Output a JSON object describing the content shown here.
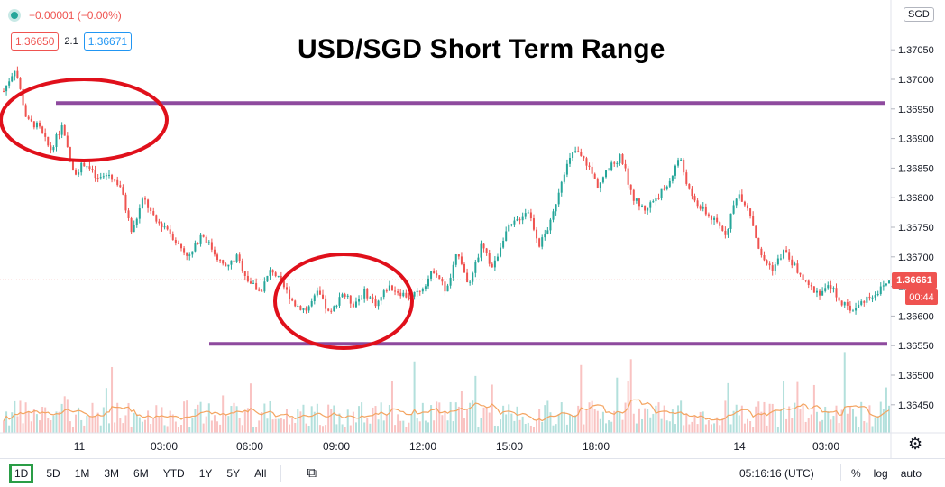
{
  "legend": {
    "change": "−0.00001 (−0.00%)",
    "sell": "1.36650",
    "spread": "2.1",
    "buy": "1.36671"
  },
  "title": "USD/SGD Short Term Range",
  "symbol_badge": "SGD",
  "last_price_label": "1.36661",
  "countdown": "00:44",
  "toolbar": {
    "ranges": [
      "1D",
      "5D",
      "1M",
      "3M",
      "6M",
      "YTD",
      "1Y",
      "5Y",
      "All"
    ],
    "active_range": "1D",
    "clock": "05:16:16 (UTC)",
    "options": [
      "%",
      "log",
      "auto"
    ]
  },
  "colors": {
    "up": "#26a69a",
    "down": "#ef5350",
    "annotation_line": "#8e4a9e",
    "annotation_circle": "#e0101b",
    "ma_line": "#f4a460"
  },
  "chart_data": {
    "type": "line",
    "y_axis": {
      "min": 1.3641,
      "max": 1.3712,
      "ticks": [
        "1.37050",
        "1.37000",
        "1.36950",
        "1.36900",
        "1.36850",
        "1.36800",
        "1.36750",
        "1.36700",
        "1.36650",
        "1.36600",
        "1.36550",
        "1.36500",
        "1.36450"
      ]
    },
    "x_axis": {
      "ticks": [
        "11",
        "03:00",
        "06:00",
        "09:00",
        "12:00",
        "15:00",
        "18:00",
        "14",
        "03:00"
      ]
    },
    "last_price": 1.36661,
    "price_path": [
      [
        0,
        1.3698
      ],
      [
        1,
        1.3702
      ],
      [
        2,
        1.3693
      ],
      [
        3,
        1.3692
      ],
      [
        4,
        1.3688
      ],
      [
        5,
        1.3692
      ],
      [
        6,
        1.3684
      ],
      [
        7,
        1.3686
      ],
      [
        8,
        1.3683
      ],
      [
        9,
        1.3684
      ],
      [
        10,
        1.3682
      ],
      [
        11,
        1.3674
      ],
      [
        12,
        1.368
      ],
      [
        13,
        1.3676
      ],
      [
        14,
        1.3675
      ],
      [
        15,
        1.3672
      ],
      [
        16,
        1.367
      ],
      [
        17,
        1.3674
      ],
      [
        18,
        1.3671
      ],
      [
        19,
        1.3668
      ],
      [
        20,
        1.367
      ],
      [
        21,
        1.3666
      ],
      [
        22,
        1.3664
      ],
      [
        23,
        1.3668
      ],
      [
        24,
        1.3665
      ],
      [
        25,
        1.3662
      ],
      [
        26,
        1.3661
      ],
      [
        27,
        1.3664
      ],
      [
        28,
        1.366
      ],
      [
        29,
        1.3664
      ],
      [
        30,
        1.3662
      ],
      [
        31,
        1.3664
      ],
      [
        32,
        1.3662
      ],
      [
        33,
        1.3665
      ],
      [
        34,
        1.3664
      ],
      [
        35,
        1.3663
      ],
      [
        36,
        1.3665
      ],
      [
        37,
        1.3668
      ],
      [
        38,
        1.3664
      ],
      [
        39,
        1.3671
      ],
      [
        40,
        1.3665
      ],
      [
        41,
        1.3672
      ],
      [
        42,
        1.3668
      ],
      [
        43,
        1.3674
      ],
      [
        44,
        1.3676
      ],
      [
        45,
        1.3678
      ],
      [
        46,
        1.3672
      ],
      [
        47,
        1.3676
      ],
      [
        48,
        1.3684
      ],
      [
        49,
        1.3688
      ],
      [
        50,
        1.3686
      ],
      [
        51,
        1.3682
      ],
      [
        52,
        1.3685
      ],
      [
        53,
        1.3687
      ],
      [
        54,
        1.368
      ],
      [
        55,
        1.3678
      ],
      [
        56,
        1.368
      ],
      [
        57,
        1.3682
      ],
      [
        58,
        1.3687
      ],
      [
        59,
        1.368
      ],
      [
        60,
        1.3678
      ],
      [
        61,
        1.3676
      ],
      [
        62,
        1.3674
      ],
      [
        63,
        1.3681
      ],
      [
        64,
        1.3678
      ],
      [
        65,
        1.367
      ],
      [
        66,
        1.3668
      ],
      [
        67,
        1.3671
      ],
      [
        68,
        1.3668
      ],
      [
        69,
        1.3665
      ],
      [
        70,
        1.3664
      ],
      [
        71,
        1.3665
      ],
      [
        72,
        1.3662
      ],
      [
        73,
        1.3661
      ],
      [
        74,
        1.3663
      ],
      [
        75,
        1.3664
      ],
      [
        76,
        1.3666
      ]
    ],
    "annotations": {
      "resistance": 1.3696,
      "support": 1.36553
    }
  }
}
